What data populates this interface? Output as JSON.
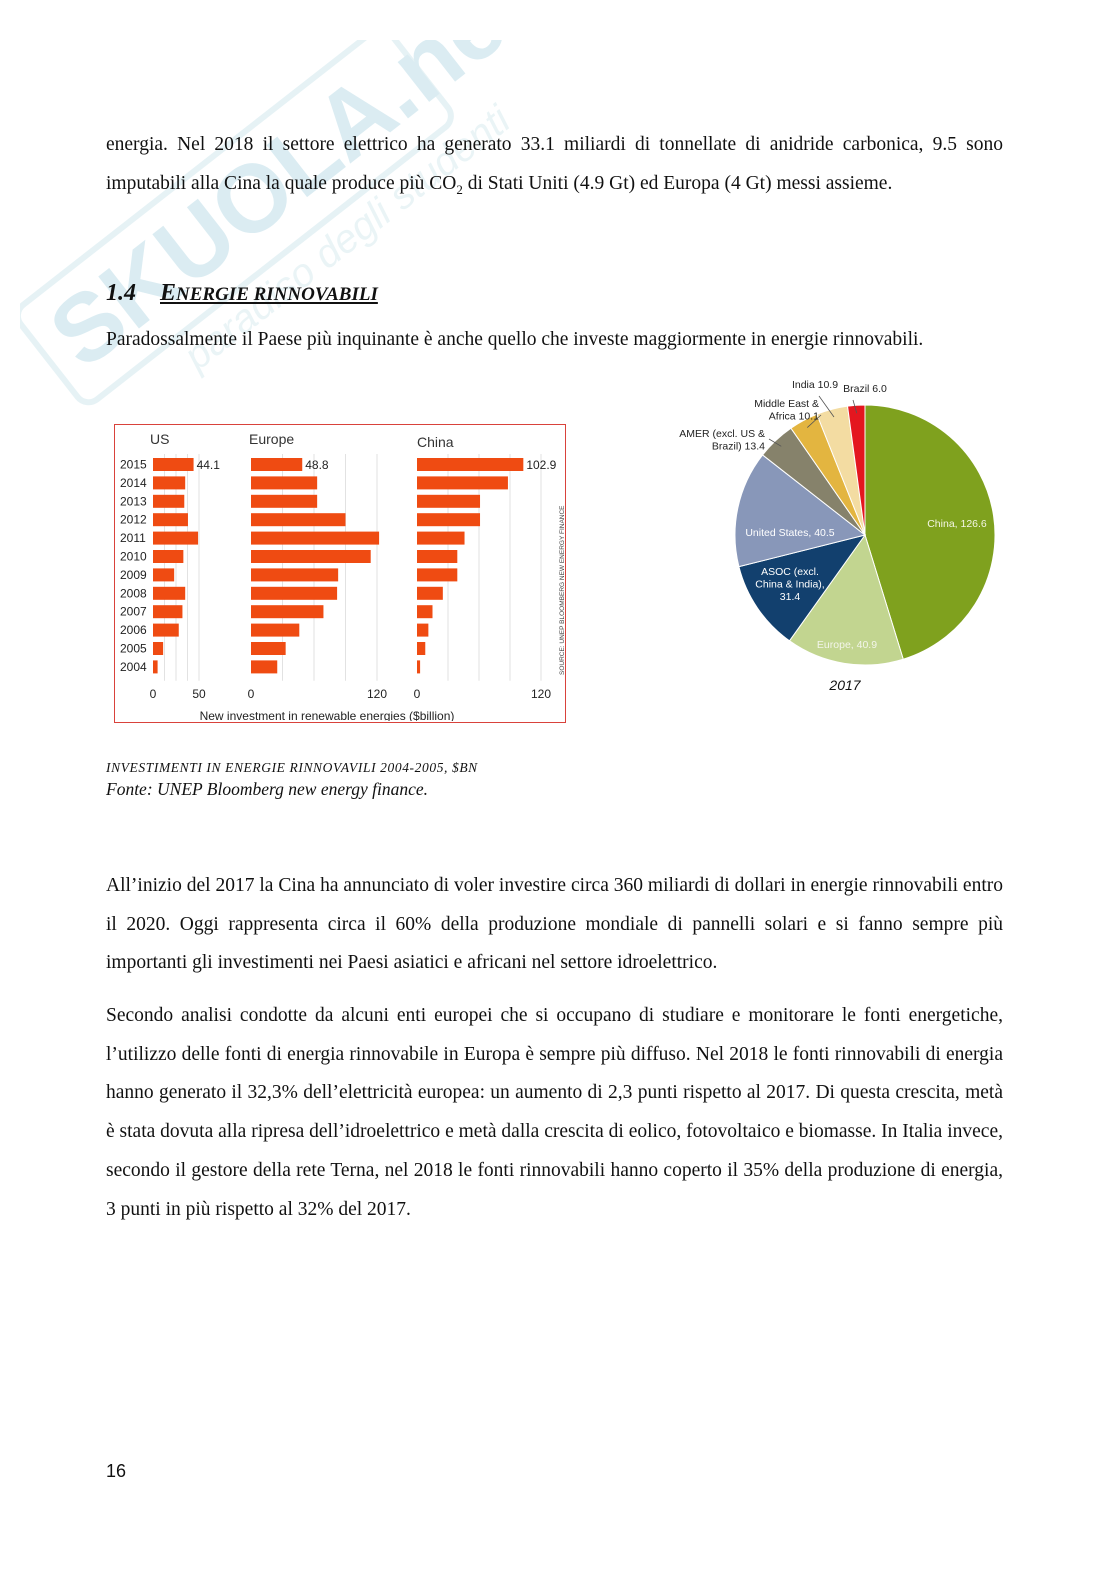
{
  "watermark": {
    "brand": "SKUOLA.net",
    "tagline": "paradiso degli studenti"
  },
  "paragraphs": {
    "p1_part1": "energia. Nel 2018 il settore elettrico ha generato 33.1 miliardi di tonnellate di anidride carbonica, 9.5 sono imputabili alla Cina la quale produce più CO",
    "p1_sub": "2",
    "p1_part2": " di Stati Uniti (4.9 Gt) ed Europa (4 Gt) messi assieme.",
    "p2": "Paradossalmente il Paese più inquinante è anche quello che investe maggiormente in energie rinnovabili.",
    "p3": "All’inizio del 2017 la Cina ha annunciato di voler investire circa 360 miliardi di dollari in energie rinnovabili entro il 2020. Oggi rappresenta circa il 60% della produzione mondiale di pannelli solari e si fanno sempre più importanti gli investimenti nei Paesi asiatici e africani nel settore idroelettrico.",
    "p4": "Secondo analisi condotte da alcuni enti europei che si occupano di studiare e monitorare le fonti energetiche, l’utilizzo delle fonti di energia rinnovabile in Europa è sempre più diffuso. Nel 2018 le fonti rinnovabili di energia hanno generato il 32,3% dell’elettricità europea: un aumento di 2,3 punti rispetto al 2017. Di questa crescita, metà è stata dovuta alla ripresa dell’idroelettrico e metà dalla crescita di eolico, fotovoltaico e biomasse. In Italia invece, secondo il gestore della rete Terna, nel 2018 le fonti rinnovabili hanno coperto il 35% della produzione di energia, 3 punti in più rispetto al 32% del 2017."
  },
  "heading": {
    "number": "1.4",
    "title_first": "E",
    "title_rest": "NERGIE RINNOVABILI"
  },
  "chart_data": [
    {
      "type": "bar",
      "orientation": "horizontal",
      "title": "",
      "xlabel": "New investment in renewable energies ($billion)",
      "source": "SOURCE: UNEP BLOOMBERG NEW ENERGY FINANCE",
      "categories": [
        "2015",
        "2014",
        "2013",
        "2012",
        "2011",
        "2010",
        "2009",
        "2008",
        "2007",
        "2006",
        "2005",
        "2004"
      ],
      "color": "#ef4b12",
      "series": [
        {
          "name": "US",
          "xlim": [
            0,
            50
          ],
          "ticks": [
            "0",
            "50"
          ],
          "value_label": "44.1",
          "values": [
            44.1,
            35,
            34,
            38,
            49,
            33,
            23,
            35,
            32,
            28,
            11,
            5
          ]
        },
        {
          "name": "Europe",
          "xlim": [
            0,
            120
          ],
          "ticks": [
            "0",
            "120"
          ],
          "value_label": "48.8",
          "values": [
            48.8,
            63,
            63,
            90,
            122,
            114,
            83,
            82,
            69,
            46,
            33,
            25
          ]
        },
        {
          "name": "China",
          "xlim": [
            0,
            120
          ],
          "ticks": [
            "0",
            "120"
          ],
          "value_label": "102.9",
          "values": [
            102.9,
            88,
            61,
            61,
            46,
            39,
            39,
            25,
            15,
            11,
            8,
            3
          ]
        }
      ]
    },
    {
      "type": "pie",
      "title": "2017",
      "slices": [
        {
          "label": "China, 126.6",
          "value": 126.6,
          "color": "#7fa11e"
        },
        {
          "label": "Europe, 40.9",
          "value": 40.9,
          "color": "#c2d590"
        },
        {
          "label": "ASOC (excl. China & India), 31.4",
          "lines": [
            "ASOC (excl.",
            "China & India),",
            "31.4"
          ],
          "value": 31.4,
          "color": "#12406e"
        },
        {
          "label": "United States, 40.5",
          "value": 40.5,
          "color": "#8897b9"
        },
        {
          "label": "AMER (excl. US & Brazil) 13.4",
          "lines": [
            "AMER (excl. US &",
            "Brazil) 13.4"
          ],
          "value": 13.4,
          "color": "#86826b"
        },
        {
          "label": "Middle East & Africa 10.1",
          "lines": [
            "Middle East &",
            "Africa 10.1"
          ],
          "value": 10.1,
          "color": "#e3b540"
        },
        {
          "label": "India 10.9",
          "value": 10.9,
          "color": "#f3dca2"
        },
        {
          "label": "Brazil 6.0",
          "value": 6.0,
          "color": "#e4161f"
        }
      ]
    }
  ],
  "captions": {
    "figure": "INVESTIMENTI IN ENERGIE RINNOVAVILI 2004-2005, $BN",
    "source": "Fonte: UNEP Bloomberg new energy finance."
  },
  "footer": {
    "page_number": "16"
  }
}
